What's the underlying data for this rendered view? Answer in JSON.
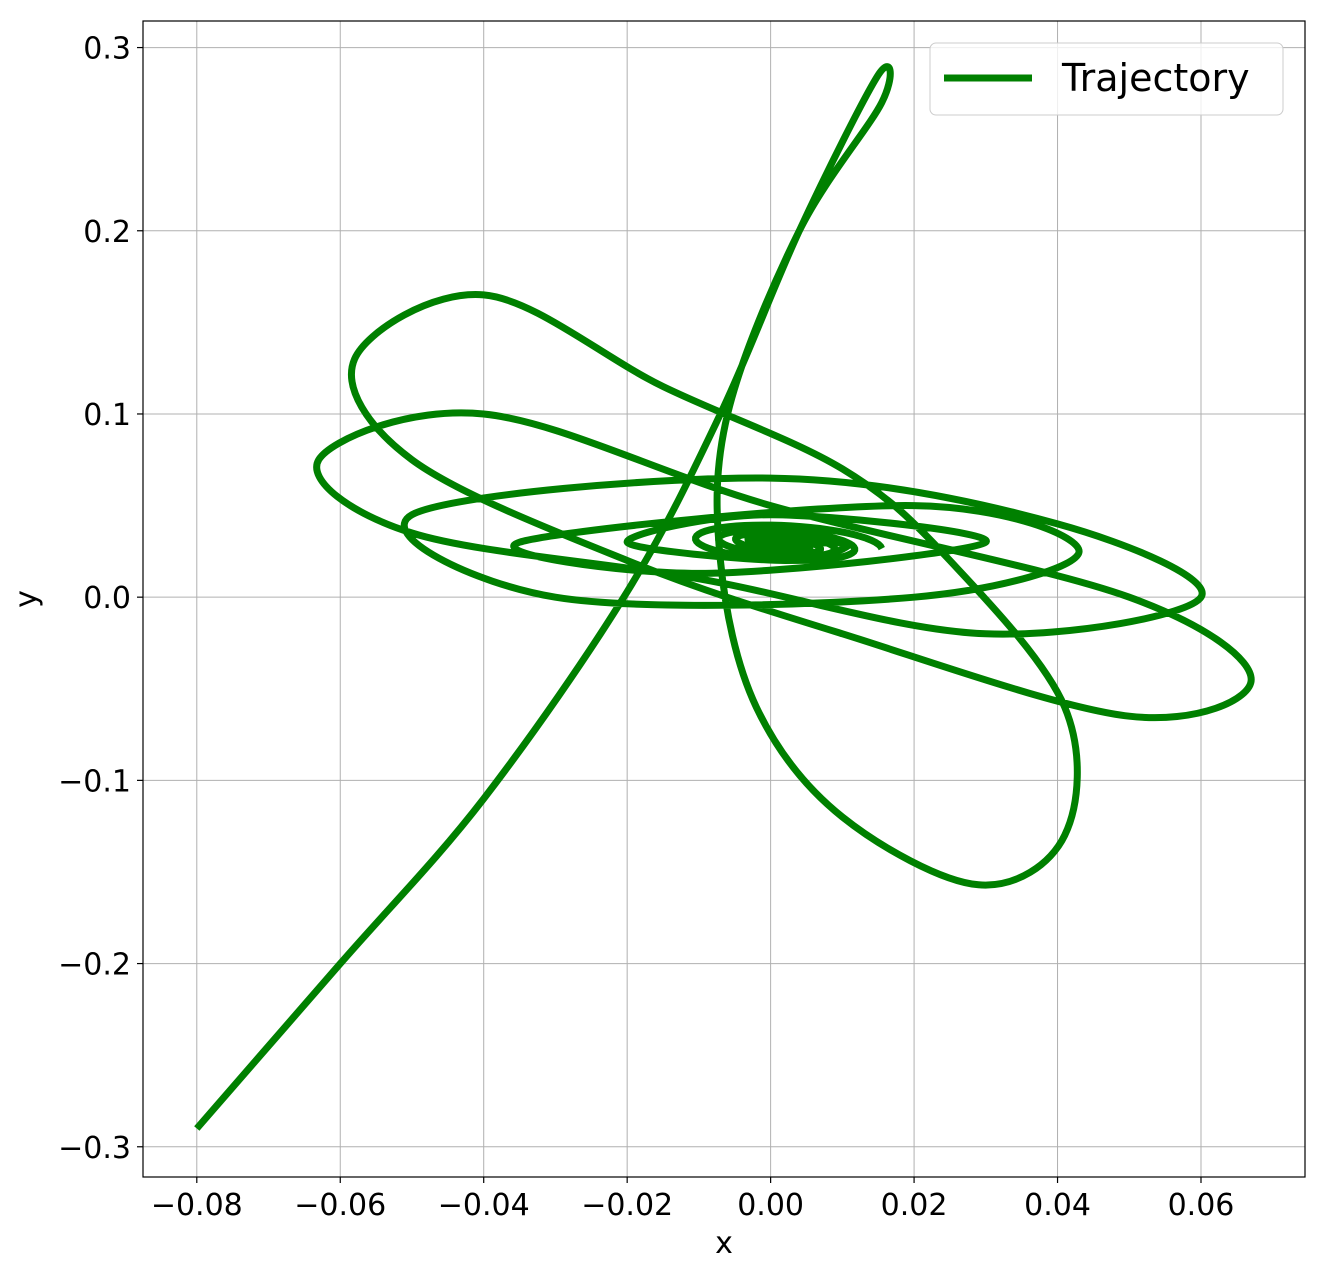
{
  "chart_data": {
    "type": "line",
    "xlabel": "x",
    "ylabel": "y",
    "xlim": [
      -0.0875,
      0.0745
    ],
    "ylim": [
      -0.3165,
      0.3145
    ],
    "x_ticks": [
      -0.08,
      -0.06,
      -0.04,
      -0.02,
      0.0,
      0.02,
      0.04,
      0.06
    ],
    "x_tick_labels": [
      "−0.08",
      "−0.06",
      "−0.04",
      "−0.02",
      "0.00",
      "0.02",
      "0.04",
      "0.06"
    ],
    "y_ticks": [
      -0.3,
      -0.2,
      -0.1,
      0.0,
      0.1,
      0.2,
      0.3
    ],
    "y_tick_labels": [
      "−0.3",
      "−0.2",
      "−0.1",
      "0.0",
      "0.1",
      "0.2",
      "0.3"
    ],
    "grid": true,
    "legend_position": "top-right",
    "series": [
      {
        "name": "Trajectory",
        "color": "#008000",
        "description_model": "damped spiral from start point toward center",
        "start": [
          -0.08,
          -0.29
        ],
        "center": [
          0.0015,
          0.029
        ],
        "points": [
          [
            -0.08,
            -0.29
          ],
          [
            -0.06,
            -0.2
          ],
          [
            -0.04,
            -0.11
          ],
          [
            -0.02,
            0.003
          ],
          [
            -0.007,
            0.1
          ],
          [
            0.004,
            0.2
          ],
          [
            0.015,
            0.285
          ],
          [
            0.0155,
            0.27
          ],
          [
            0.004,
            0.2
          ],
          [
            -0.006,
            0.1
          ],
          [
            -0.007,
            0.02
          ],
          [
            -0.002,
            -0.06
          ],
          [
            0.01,
            -0.12
          ],
          [
            0.029,
            -0.157
          ],
          [
            0.041,
            -0.13
          ],
          [
            0.041,
            -0.06
          ],
          [
            0.025,
            0.02
          ],
          [
            0.01,
            0.07
          ],
          [
            -0.015,
            0.115
          ],
          [
            -0.04,
            0.165
          ],
          [
            -0.058,
            0.13
          ],
          [
            -0.05,
            0.075
          ],
          [
            -0.02,
            0.02
          ],
          [
            0.01,
            -0.02
          ],
          [
            0.05,
            -0.065
          ],
          [
            0.067,
            -0.045
          ],
          [
            0.05,
            0.0
          ],
          [
            0.0,
            0.05
          ],
          [
            -0.04,
            0.1
          ],
          [
            -0.063,
            0.075
          ],
          [
            -0.05,
            0.035
          ],
          [
            -0.01,
            0.01
          ],
          [
            0.03,
            -0.02
          ],
          [
            0.06,
            0.0
          ],
          [
            0.04,
            0.04
          ],
          [
            0.0,
            0.065
          ],
          [
            -0.05,
            0.045
          ],
          [
            -0.03,
            0.0
          ],
          [
            0.02,
            0.0
          ],
          [
            0.043,
            0.025
          ],
          [
            0.02,
            0.05
          ],
          [
            -0.035,
            0.03
          ],
          [
            -0.01,
            0.013
          ],
          [
            0.03,
            0.03
          ],
          [
            0.0,
            0.045
          ],
          [
            -0.02,
            0.03
          ],
          [
            0.002,
            0.02
          ],
          [
            0.011,
            0.029
          ],
          [
            0.0015,
            0.029
          ]
        ]
      }
    ]
  },
  "legend": {
    "label": "Trajectory"
  }
}
